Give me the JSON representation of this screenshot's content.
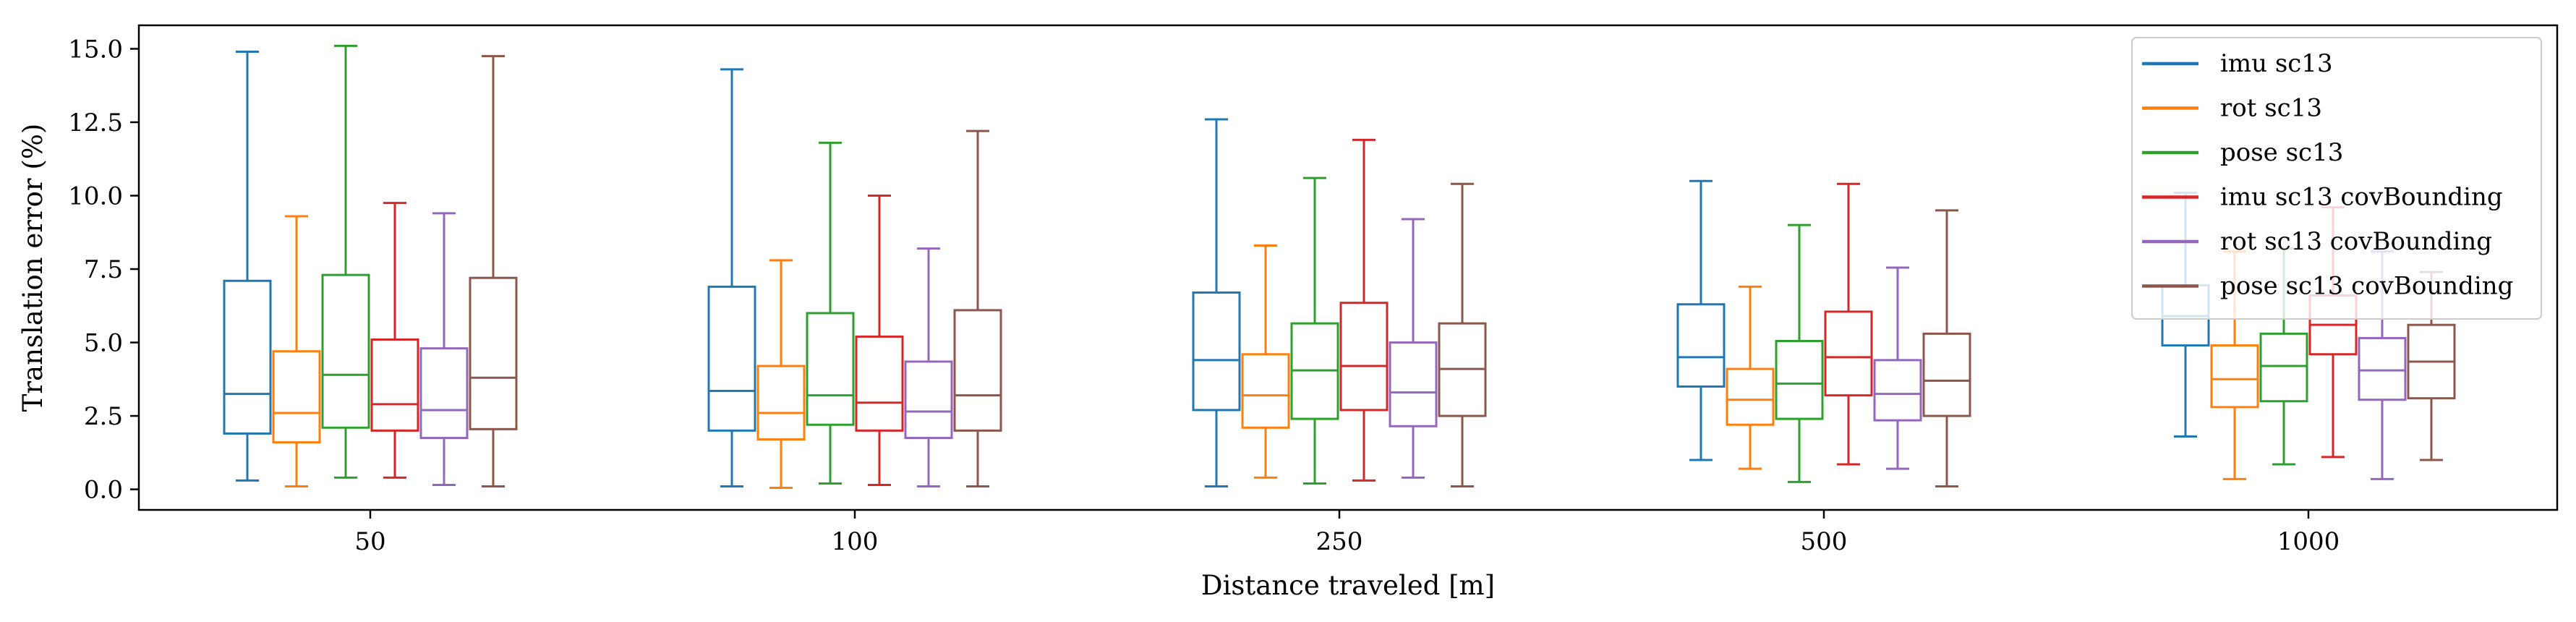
{
  "chart_data": {
    "type": "box",
    "categories": [
      "50",
      "100",
      "250",
      "500",
      "1000"
    ],
    "xlabel": "Distance traveled [m]",
    "ylabel": "Translation error (%)",
    "ylim": [
      -0.7,
      15.8
    ],
    "yticks": [
      "0.0",
      "2.5",
      "5.0",
      "7.5",
      "10.0",
      "12.5",
      "15.0"
    ],
    "grid": false,
    "legend_position": "top-right",
    "series": [
      {
        "name": "imu sc13",
        "color": "#1f77b4",
        "boxes": [
          {
            "min": 0.3,
            "q1": 1.9,
            "median": 3.25,
            "q3": 7.1,
            "max": 14.9
          },
          {
            "min": 0.1,
            "q1": 2.0,
            "median": 3.35,
            "q3": 6.9,
            "max": 14.3
          },
          {
            "min": 0.1,
            "q1": 2.7,
            "median": 4.4,
            "q3": 6.7,
            "max": 12.6
          },
          {
            "min": 1.0,
            "q1": 3.5,
            "median": 4.5,
            "q3": 6.3,
            "max": 10.5
          },
          {
            "min": 1.8,
            "q1": 4.9,
            "median": 5.9,
            "q3": 6.95,
            "max": 10.1
          }
        ]
      },
      {
        "name": "rot sc13",
        "color": "#ff7f0e",
        "boxes": [
          {
            "min": 0.1,
            "q1": 1.6,
            "median": 2.6,
            "q3": 4.7,
            "max": 9.3
          },
          {
            "min": 0.05,
            "q1": 1.7,
            "median": 2.6,
            "q3": 4.2,
            "max": 7.8
          },
          {
            "min": 0.4,
            "q1": 2.1,
            "median": 3.2,
            "q3": 4.6,
            "max": 8.3
          },
          {
            "min": 0.7,
            "q1": 2.2,
            "median": 3.05,
            "q3": 4.1,
            "max": 6.9
          },
          {
            "min": 0.35,
            "q1": 2.8,
            "median": 3.75,
            "q3": 4.9,
            "max": 8.1
          }
        ]
      },
      {
        "name": "pose sc13",
        "color": "#2ca02c",
        "boxes": [
          {
            "min": 0.4,
            "q1": 2.1,
            "median": 3.9,
            "q3": 7.3,
            "max": 15.1
          },
          {
            "min": 0.2,
            "q1": 2.2,
            "median": 3.2,
            "q3": 6.0,
            "max": 11.8
          },
          {
            "min": 0.2,
            "q1": 2.4,
            "median": 4.05,
            "q3": 5.65,
            "max": 10.6
          },
          {
            "min": 0.25,
            "q1": 2.4,
            "median": 3.6,
            "q3": 5.05,
            "max": 9.0
          },
          {
            "min": 0.85,
            "q1": 3.0,
            "median": 4.2,
            "q3": 5.3,
            "max": 8.2
          }
        ]
      },
      {
        "name": "imu sc13 covBounding",
        "color": "#d62728",
        "boxes": [
          {
            "min": 0.4,
            "q1": 2.0,
            "median": 2.9,
            "q3": 5.1,
            "max": 9.75
          },
          {
            "min": 0.15,
            "q1": 2.0,
            "median": 2.95,
            "q3": 5.2,
            "max": 10.0
          },
          {
            "min": 0.3,
            "q1": 2.7,
            "median": 4.2,
            "q3": 6.35,
            "max": 11.9
          },
          {
            "min": 0.85,
            "q1": 3.2,
            "median": 4.5,
            "q3": 6.05,
            "max": 10.4
          },
          {
            "min": 1.1,
            "q1": 4.6,
            "median": 5.6,
            "q3": 6.6,
            "max": 9.6
          }
        ]
      },
      {
        "name": "rot sc13 covBounding",
        "color": "#9467bd",
        "boxes": [
          {
            "min": 0.15,
            "q1": 1.75,
            "median": 2.7,
            "q3": 4.8,
            "max": 9.4
          },
          {
            "min": 0.1,
            "q1": 1.75,
            "median": 2.65,
            "q3": 4.35,
            "max": 8.2
          },
          {
            "min": 0.4,
            "q1": 2.15,
            "median": 3.3,
            "q3": 5.0,
            "max": 9.2
          },
          {
            "min": 0.7,
            "q1": 2.35,
            "median": 3.25,
            "q3": 4.4,
            "max": 7.55
          },
          {
            "min": 0.35,
            "q1": 3.05,
            "median": 4.05,
            "q3": 5.15,
            "max": 8.1
          }
        ]
      },
      {
        "name": "pose sc13 covBounding",
        "color": "#8c564b",
        "boxes": [
          {
            "min": 0.1,
            "q1": 2.05,
            "median": 3.8,
            "q3": 7.2,
            "max": 14.75
          },
          {
            "min": 0.1,
            "q1": 2.0,
            "median": 3.2,
            "q3": 6.1,
            "max": 12.2
          },
          {
            "min": 0.1,
            "q1": 2.5,
            "median": 4.1,
            "q3": 5.65,
            "max": 10.4
          },
          {
            "min": 0.1,
            "q1": 2.5,
            "median": 3.7,
            "q3": 5.3,
            "max": 9.5
          },
          {
            "min": 1.0,
            "q1": 3.1,
            "median": 4.35,
            "q3": 5.6,
            "max": 7.4
          }
        ]
      }
    ]
  }
}
